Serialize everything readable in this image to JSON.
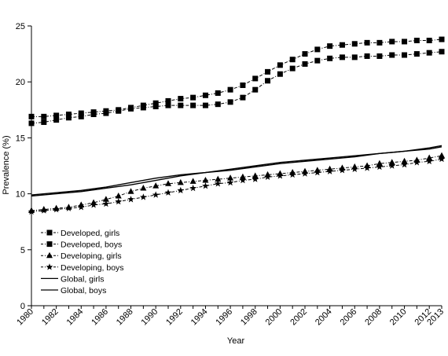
{
  "chart_data": {
    "type": "line",
    "title": "",
    "xlabel": "Year",
    "ylabel": "Prevalence (%)",
    "xlim": [
      1980,
      2013
    ],
    "ylim": [
      0,
      25
    ],
    "x_ticks": [
      "1980",
      "1982",
      "1984",
      "1986",
      "1988",
      "1990",
      "1992",
      "1994",
      "1996",
      "1998",
      "2000",
      "2002",
      "2004",
      "2006",
      "2008",
      "2010",
      "2012",
      "2013"
    ],
    "y_ticks": [
      "0",
      "5",
      "10",
      "15",
      "20",
      "25"
    ],
    "grid": false,
    "legend_position": "bottom-left",
    "series": [
      {
        "name": "Developed, girls",
        "marker": "square",
        "line_style": "dash-dot",
        "x": [
          1980,
          1981,
          1982,
          1983,
          1984,
          1985,
          1986,
          1987,
          1988,
          1989,
          1990,
          1991,
          1992,
          1993,
          1994,
          1995,
          1996,
          1997,
          1998,
          1999,
          2000,
          2001,
          2002,
          2003,
          2004,
          2005,
          2006,
          2007,
          2008,
          2009,
          2010,
          2011,
          2012,
          2013
        ],
        "values": [
          16.9,
          16.9,
          17.0,
          17.1,
          17.2,
          17.3,
          17.4,
          17.5,
          17.7,
          17.9,
          18.1,
          18.3,
          18.5,
          18.6,
          18.8,
          19.0,
          19.3,
          19.7,
          20.3,
          20.9,
          21.5,
          22.0,
          22.5,
          22.9,
          23.2,
          23.3,
          23.4,
          23.5,
          23.5,
          23.6,
          23.6,
          23.7,
          23.7,
          23.8
        ]
      },
      {
        "name": "Developed, boys",
        "marker": "square",
        "line_style": "dash-dot",
        "x": [
          1980,
          1981,
          1982,
          1983,
          1984,
          1985,
          1986,
          1987,
          1988,
          1989,
          1990,
          1991,
          1992,
          1993,
          1994,
          1995,
          1996,
          1997,
          1998,
          1999,
          2000,
          2001,
          2002,
          2003,
          2004,
          2005,
          2006,
          2007,
          2008,
          2009,
          2010,
          2011,
          2012,
          2013
        ],
        "values": [
          16.3,
          16.4,
          16.6,
          16.8,
          16.9,
          17.1,
          17.2,
          17.4,
          17.6,
          17.7,
          17.8,
          17.9,
          17.9,
          17.9,
          17.9,
          18.0,
          18.2,
          18.6,
          19.3,
          20.1,
          20.7,
          21.2,
          21.6,
          21.9,
          22.1,
          22.2,
          22.2,
          22.3,
          22.3,
          22.4,
          22.4,
          22.5,
          22.6,
          22.7
        ]
      },
      {
        "name": "Developing, girls",
        "marker": "triangle",
        "line_style": "dash-dot",
        "x": [
          1980,
          1981,
          1982,
          1983,
          1984,
          1985,
          1986,
          1987,
          1988,
          1989,
          1990,
          1991,
          1992,
          1993,
          1994,
          1995,
          1996,
          1997,
          1998,
          1999,
          2000,
          2001,
          2002,
          2003,
          2004,
          2005,
          2006,
          2007,
          2008,
          2009,
          2010,
          2011,
          2012,
          2013
        ],
        "values": [
          8.5,
          8.6,
          8.7,
          8.8,
          9.0,
          9.2,
          9.5,
          9.8,
          10.2,
          10.5,
          10.7,
          10.9,
          11.0,
          11.1,
          11.2,
          11.3,
          11.4,
          11.5,
          11.6,
          11.7,
          11.8,
          11.9,
          12.0,
          12.1,
          12.2,
          12.3,
          12.4,
          12.5,
          12.7,
          12.8,
          12.9,
          13.0,
          13.2,
          13.4
        ]
      },
      {
        "name": "Developing, boys",
        "marker": "star",
        "line_style": "dash-dot",
        "x": [
          1980,
          1981,
          1982,
          1983,
          1984,
          1985,
          1986,
          1987,
          1988,
          1989,
          1990,
          1991,
          1992,
          1993,
          1994,
          1995,
          1996,
          1997,
          1998,
          1999,
          2000,
          2001,
          2002,
          2003,
          2004,
          2005,
          2006,
          2007,
          2008,
          2009,
          2010,
          2011,
          2012,
          2013
        ],
        "values": [
          8.4,
          8.5,
          8.6,
          8.7,
          8.8,
          9.0,
          9.1,
          9.3,
          9.5,
          9.7,
          9.9,
          10.1,
          10.3,
          10.5,
          10.7,
          10.9,
          11.0,
          11.2,
          11.3,
          11.5,
          11.6,
          11.7,
          11.8,
          11.9,
          12.0,
          12.1,
          12.2,
          12.3,
          12.4,
          12.5,
          12.6,
          12.8,
          12.9,
          13.1
        ]
      },
      {
        "name": "Global, girls",
        "marker": "none",
        "line_style": "solid",
        "x": [
          1980,
          1982,
          1984,
          1986,
          1988,
          1990,
          1992,
          1994,
          1996,
          1998,
          2000,
          2002,
          2004,
          2006,
          2008,
          2010,
          2012,
          2013
        ],
        "values": [
          9.9,
          10.1,
          10.3,
          10.6,
          11.0,
          11.4,
          11.7,
          11.9,
          12.2,
          12.5,
          12.8,
          13.0,
          13.2,
          13.4,
          13.6,
          13.8,
          14.1,
          14.3
        ]
      },
      {
        "name": "Global, boys",
        "marker": "none",
        "line_style": "solid",
        "x": [
          1980,
          1982,
          1984,
          1986,
          1988,
          1990,
          1992,
          1994,
          1996,
          1998,
          2000,
          2002,
          2004,
          2006,
          2008,
          2010,
          2012,
          2013
        ],
        "values": [
          9.8,
          10.0,
          10.2,
          10.5,
          10.8,
          11.2,
          11.6,
          11.9,
          12.1,
          12.4,
          12.7,
          12.9,
          13.1,
          13.3,
          13.6,
          13.8,
          14.0,
          14.2
        ]
      }
    ]
  }
}
